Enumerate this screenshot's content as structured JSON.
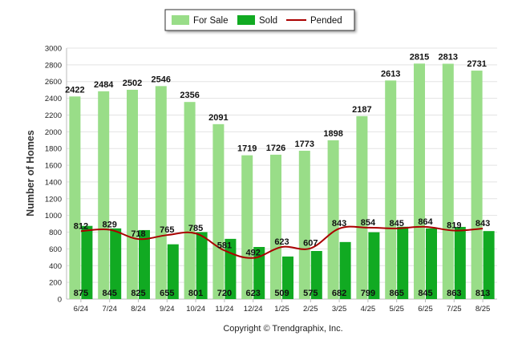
{
  "chart_data": {
    "type": "bar",
    "categories": [
      "6/24",
      "7/24",
      "8/24",
      "9/24",
      "10/24",
      "11/24",
      "12/24",
      "1/25",
      "2/25",
      "3/25",
      "4/25",
      "5/25",
      "6/25",
      "7/25",
      "8/25"
    ],
    "ylabel": "Number of Homes",
    "ylim": [
      0,
      3000
    ],
    "yticks": [
      0,
      200,
      400,
      600,
      800,
      1000,
      1200,
      1400,
      1600,
      1800,
      2000,
      2200,
      2400,
      2600,
      2800,
      3000
    ],
    "grid": true,
    "legend_position": "top-center",
    "series": [
      {
        "name": "For Sale",
        "kind": "bar",
        "color": "#99dd88",
        "values": [
          2422,
          2484,
          2502,
          2546,
          2356,
          2091,
          1719,
          1726,
          1773,
          1898,
          2187,
          2613,
          2815,
          2813,
          2731
        ]
      },
      {
        "name": "Sold",
        "kind": "bar",
        "color": "#11aa22",
        "values": [
          875,
          845,
          825,
          655,
          801,
          720,
          623,
          509,
          575,
          682,
          799,
          865,
          845,
          863,
          813
        ]
      },
      {
        "name": "Pended",
        "kind": "line",
        "color": "#aa0000",
        "values": [
          812,
          829,
          718,
          765,
          785,
          581,
          492,
          623,
          607,
          843,
          854,
          845,
          864,
          819,
          843
        ]
      }
    ]
  },
  "footer": {
    "copyright": "Copyright © Trendgraphix, Inc."
  }
}
